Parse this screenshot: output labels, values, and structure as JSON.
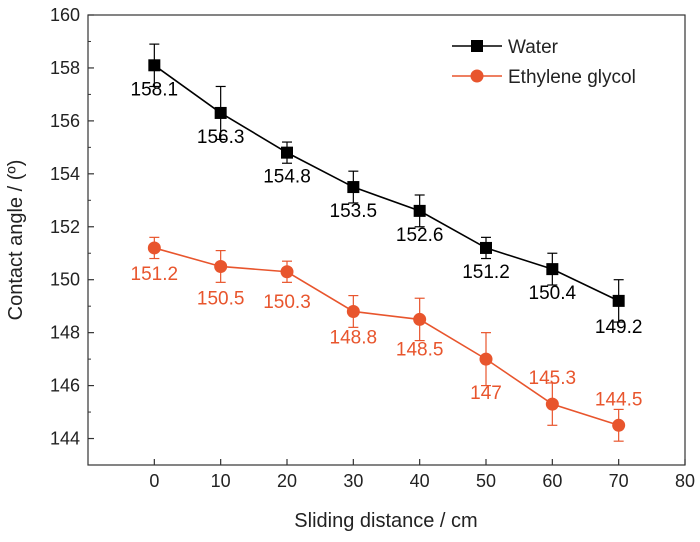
{
  "chart_data": {
    "type": "line",
    "title": "",
    "xlabel": "Sliding distance / cm",
    "ylabel": "Contact angle / (º)",
    "xlim": [
      -10,
      80
    ],
    "ylim": [
      143,
      160
    ],
    "xticks": [
      0,
      10,
      20,
      30,
      40,
      50,
      60,
      70,
      80
    ],
    "yticks": [
      144,
      146,
      148,
      150,
      152,
      154,
      156,
      158,
      160
    ],
    "x": [
      0,
      10,
      20,
      30,
      40,
      50,
      60,
      70
    ],
    "grid": false,
    "legend_position": "top-right",
    "series": [
      {
        "name": "Water",
        "color": "#000000",
        "marker": "square",
        "values": [
          158.1,
          156.3,
          154.8,
          153.5,
          152.6,
          151.2,
          150.4,
          149.2
        ],
        "errors": [
          0.8,
          1.0,
          0.4,
          0.6,
          0.6,
          0.4,
          0.6,
          0.8
        ],
        "labels": [
          "158.1",
          "156.3",
          "154.8",
          "153.5",
          "152.6",
          "151.2",
          "150.4",
          "149.2"
        ]
      },
      {
        "name": "Ethylene glycol",
        "color": "#e8552d",
        "marker": "circle",
        "values": [
          151.2,
          150.5,
          150.3,
          148.8,
          148.5,
          147.0,
          145.3,
          144.5
        ],
        "errors": [
          0.4,
          0.6,
          0.4,
          0.6,
          0.8,
          1.0,
          0.8,
          0.6
        ],
        "labels": [
          "151.2",
          "150.5",
          "150.3",
          "148.8",
          "148.5",
          "147",
          "145.3",
          "144.5"
        ]
      }
    ]
  }
}
